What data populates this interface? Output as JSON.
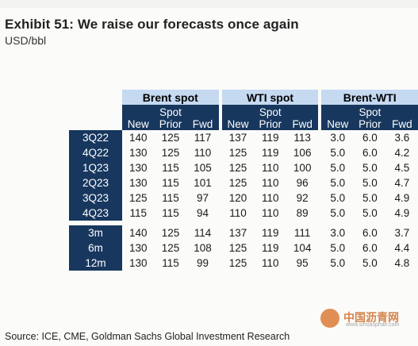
{
  "title": "Exhibit 51: We raise our forecasts once again",
  "subtitle": "USD/bbl",
  "groups": [
    "Brent spot",
    "WTI spot",
    "Brent-WTI"
  ],
  "subheaders": {
    "new": "New",
    "spot_prior_top": "Spot",
    "spot_prior_bottom": "Prior",
    "fwd": "Fwd"
  },
  "quarters": [
    {
      "label": "3Q22",
      "values": [
        "140",
        "125",
        "117",
        "137",
        "119",
        "113",
        "3.0",
        "6.0",
        "3.6"
      ]
    },
    {
      "label": "4Q22",
      "values": [
        "130",
        "125",
        "110",
        "125",
        "119",
        "106",
        "5.0",
        "6.0",
        "4.2"
      ]
    },
    {
      "label": "1Q23",
      "values": [
        "130",
        "115",
        "105",
        "125",
        "110",
        "100",
        "5.0",
        "5.0",
        "4.5"
      ]
    },
    {
      "label": "2Q23",
      "values": [
        "130",
        "115",
        "101",
        "125",
        "110",
        "96",
        "5.0",
        "5.0",
        "4.7"
      ]
    },
    {
      "label": "3Q23",
      "values": [
        "125",
        "115",
        "97",
        "120",
        "110",
        "92",
        "5.0",
        "5.0",
        "4.9"
      ]
    },
    {
      "label": "4Q23",
      "values": [
        "115",
        "115",
        "94",
        "110",
        "110",
        "89",
        "5.0",
        "5.0",
        "4.9"
      ]
    }
  ],
  "horizons": [
    {
      "label": "3m",
      "values": [
        "140",
        "125",
        "114",
        "137",
        "119",
        "111",
        "3.0",
        "6.0",
        "3.7"
      ]
    },
    {
      "label": "6m",
      "values": [
        "130",
        "125",
        "108",
        "125",
        "119",
        "104",
        "5.0",
        "6.0",
        "4.4"
      ]
    },
    {
      "label": "12m",
      "values": [
        "130",
        "115",
        "99",
        "125",
        "110",
        "95",
        "5.0",
        "5.0",
        "4.8"
      ]
    }
  ],
  "source": "Source: ICE, CME, Goldman Sachs Global Investment Research",
  "watermark": {
    "text": "中国沥青网",
    "url": "www.sinoasphalt.com"
  }
}
